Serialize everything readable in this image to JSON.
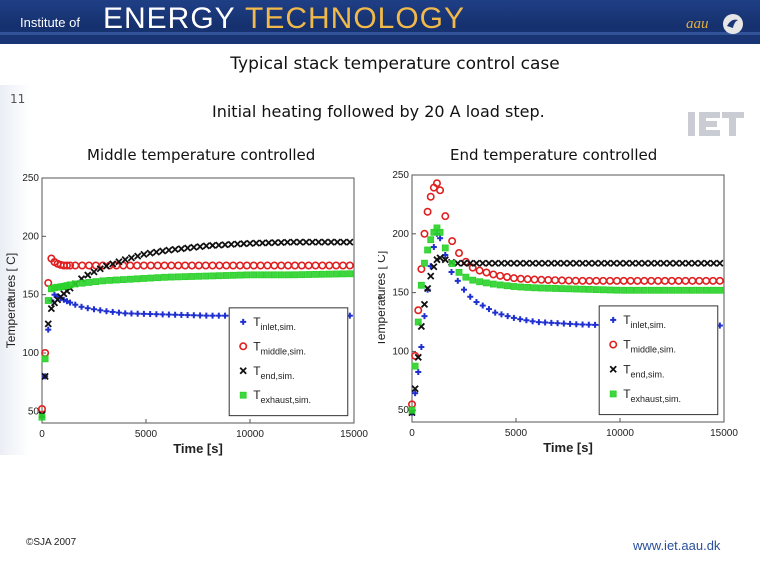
{
  "header": {
    "institute": "Institute of",
    "energy": "ENERGY",
    "technology": "TECHNOLOGY",
    "aau": "aau"
  },
  "slide": {
    "title": "Typical stack temperature control case",
    "number": "11",
    "subtitle": "Initial heating followed by 20 A load step.",
    "iet_logo": "IET",
    "footer_left": "©SJA 2007",
    "footer_right": "www.iet.aau.dk"
  },
  "colors": {
    "inlet": "#1f2fd0",
    "middle": "#e02020",
    "end": "#111111",
    "exhaust": "#2ad12a"
  },
  "chart_data": [
    {
      "type": "scatter",
      "title": "Middle temperature controlled",
      "xlabel": "Time [s]",
      "ylabel": "Temperatures [ C]",
      "xlim": [
        0,
        15000
      ],
      "ylim": [
        40,
        250
      ],
      "xticks": [
        "0",
        "5000",
        "10000",
        "15000"
      ],
      "yticks": [
        "50",
        "100",
        "150",
        "200",
        "250"
      ],
      "grid": false,
      "legend": "bottom-right",
      "series": [
        {
          "name": "Tinlet,sim.",
          "marker": "plus",
          "color": "#1f2fd0",
          "x": [
            0,
            150,
            300,
            450,
            600,
            800,
            1000,
            1500,
            2000,
            3000,
            4000,
            6000,
            8000,
            10000,
            12000,
            15000
          ],
          "y": [
            45,
            80,
            120,
            145,
            150,
            148,
            146,
            142,
            139,
            136,
            134,
            133,
            132,
            132,
            132,
            132
          ]
        },
        {
          "name": "Tmiddle,sim.",
          "marker": "circle",
          "color": "#e02020",
          "x": [
            0,
            150,
            300,
            450,
            600,
            800,
            1000,
            1500,
            2000,
            3000,
            5000,
            8000,
            11000,
            15000
          ],
          "y": [
            52,
            100,
            160,
            181,
            178,
            176,
            175,
            175,
            175,
            175,
            175,
            175,
            175,
            175
          ]
        },
        {
          "name": "Tend,sim.",
          "marker": "x",
          "color": "#111111",
          "x": [
            0,
            150,
            300,
            450,
            600,
            1000,
            1500,
            2000,
            3000,
            4000,
            5000,
            6000,
            7000,
            8000,
            9000,
            10000,
            12000,
            15000
          ],
          "y": [
            47,
            80,
            125,
            138,
            143,
            150,
            158,
            165,
            174,
            180,
            185,
            188,
            190,
            192,
            193,
            194,
            195,
            195
          ]
        },
        {
          "name": "Texhaust,sim.",
          "marker": "square",
          "color": "#2ad12a",
          "x": [
            0,
            150,
            300,
            450,
            600,
            1000,
            1500,
            2000,
            3000,
            4000,
            5000,
            6000,
            8000,
            10000,
            12000,
            15000
          ],
          "y": [
            45,
            95,
            145,
            155,
            156,
            157,
            159,
            160,
            162,
            163,
            164,
            165,
            166,
            167,
            167,
            168
          ]
        }
      ]
    },
    {
      "type": "scatter",
      "title": "End temperature controlled",
      "xlabel": "Time [s]",
      "ylabel": "Temperatures [ C]",
      "xlim": [
        0,
        15000
      ],
      "ylim": [
        40,
        250
      ],
      "xticks": [
        "0",
        "5000",
        "10000",
        "15000"
      ],
      "yticks": [
        "50",
        "100",
        "150",
        "200",
        "250"
      ],
      "grid": false,
      "legend": "bottom-right",
      "series": [
        {
          "name": "Tinlet,sim.",
          "marker": "plus",
          "color": "#1f2fd0",
          "x": [
            0,
            200,
            400,
            600,
            800,
            1000,
            1200,
            1400,
            1600,
            1800,
            2200,
            2600,
            3000,
            4000,
            5000,
            6000,
            7000,
            8000,
            10000,
            12000,
            15000
          ],
          "y": [
            48,
            70,
            95,
            130,
            160,
            185,
            200,
            195,
            182,
            170,
            160,
            150,
            143,
            133,
            128,
            125,
            124,
            123,
            122,
            122,
            122
          ]
        },
        {
          "name": "Tmiddle,sim.",
          "marker": "circle",
          "color": "#e02020",
          "x": [
            0,
            200,
            400,
            600,
            800,
            1000,
            1200,
            1400,
            1600,
            1800,
            2200,
            2600,
            3000,
            4000,
            5000,
            6000,
            8000,
            10000,
            12000,
            15000
          ],
          "y": [
            55,
            110,
            160,
            200,
            225,
            238,
            243,
            235,
            215,
            198,
            185,
            176,
            170,
            165,
            162,
            161,
            160,
            160,
            160,
            160
          ]
        },
        {
          "name": "Tend,sim.",
          "marker": "x",
          "color": "#111111",
          "x": [
            0,
            200,
            400,
            600,
            800,
            1000,
            1200,
            1400,
            1600,
            1800,
            2200,
            2600,
            3000,
            4000,
            6000,
            8000,
            10000,
            12000,
            15000
          ],
          "y": [
            48,
            75,
            115,
            140,
            158,
            170,
            178,
            180,
            178,
            176,
            175,
            175,
            175,
            175,
            175,
            175,
            175,
            175,
            175
          ]
        },
        {
          "name": "Texhaust,sim.",
          "marker": "square",
          "color": "#2ad12a",
          "x": [
            0,
            200,
            400,
            600,
            800,
            1000,
            1200,
            1400,
            1600,
            1800,
            2200,
            2600,
            3000,
            4000,
            5000,
            6000,
            8000,
            10000,
            12000,
            15000
          ],
          "y": [
            50,
            100,
            150,
            175,
            190,
            200,
            205,
            200,
            188,
            178,
            168,
            163,
            160,
            157,
            155,
            154,
            153,
            152,
            152,
            152
          ]
        }
      ]
    }
  ]
}
